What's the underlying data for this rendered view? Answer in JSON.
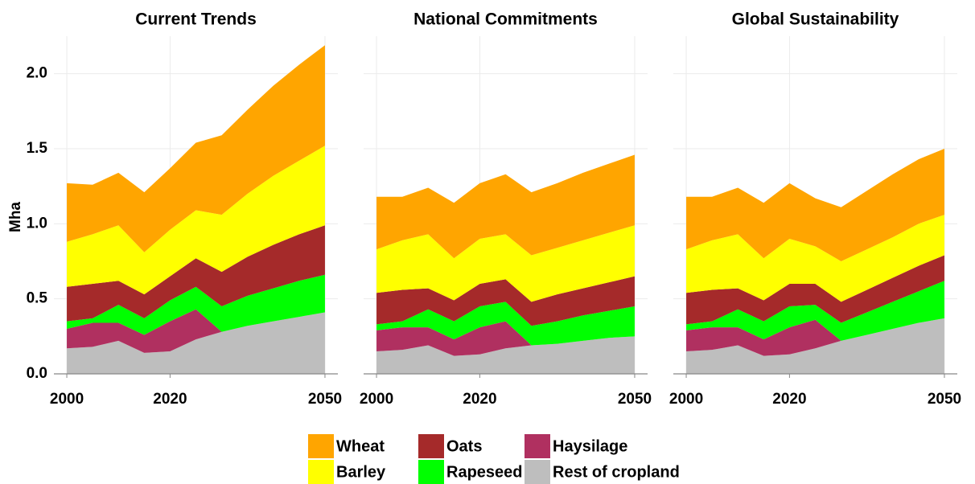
{
  "chart_data": [
    {
      "type": "area",
      "title": "Current Trends",
      "ylabel": "Mha",
      "x": [
        2000,
        2005,
        2010,
        2015,
        2020,
        2025,
        2030,
        2035,
        2040,
        2045,
        2050
      ],
      "xlim": [
        1997.5,
        2052.5
      ],
      "xticks": [
        2000,
        2020,
        2050
      ],
      "ylim": [
        0,
        2.25
      ],
      "yticks": [
        {
          "value": 0,
          "label": "0.0"
        },
        {
          "value": 0.5,
          "label": "0.5"
        },
        {
          "value": 1,
          "label": "1.0"
        },
        {
          "value": 1.5,
          "label": "1.5"
        },
        {
          "value": 2,
          "label": "2.0"
        }
      ],
      "grid": true,
      "series": [
        {
          "name": "Wheat",
          "color": "#ffa500",
          "values": [
            0.39,
            0.33,
            0.35,
            0.4,
            0.41,
            0.45,
            0.53,
            0.56,
            0.6,
            0.64,
            0.67
          ]
        },
        {
          "name": "Barley",
          "color": "#ffff00",
          "values": [
            0.3,
            0.33,
            0.37,
            0.28,
            0.31,
            0.32,
            0.38,
            0.42,
            0.46,
            0.49,
            0.53
          ]
        },
        {
          "name": "Oats",
          "color": "#a52a2a",
          "values": [
            0.23,
            0.23,
            0.16,
            0.16,
            0.16,
            0.19,
            0.23,
            0.26,
            0.29,
            0.31,
            0.33
          ]
        },
        {
          "name": "Rapeseed",
          "color": "#00ff00",
          "values": [
            0.05,
            0.03,
            0.12,
            0.11,
            0.14,
            0.15,
            0.17,
            0.2,
            0.22,
            0.24,
            0.25
          ]
        },
        {
          "name": "Haysilage",
          "color": "#b03060",
          "values": [
            0.13,
            0.16,
            0.12,
            0.12,
            0.2,
            0.2,
            0,
            0,
            0,
            0,
            0
          ]
        },
        {
          "name": "Rest of cropland",
          "color": "#bebebe",
          "values": [
            0.17,
            0.18,
            0.22,
            0.14,
            0.15,
            0.23,
            0.28,
            0.32,
            0.35,
            0.38,
            0.41
          ]
        }
      ]
    },
    {
      "type": "area",
      "title": "National Commitments",
      "x": [
        2000,
        2005,
        2010,
        2015,
        2020,
        2025,
        2030,
        2035,
        2040,
        2045,
        2050
      ],
      "xlim": [
        1997.5,
        2052.5
      ],
      "xticks": [
        2000,
        2020,
        2050
      ],
      "ylim": [
        0,
        2.25
      ],
      "yticks": [
        0,
        0.5,
        1,
        1.5,
        2
      ],
      "grid": true,
      "series": [
        {
          "color": "#ffa500",
          "values": [
            0.35,
            0.29,
            0.31,
            0.37,
            0.37,
            0.4,
            0.42,
            0.43,
            0.45,
            0.46,
            0.47
          ]
        },
        {
          "color": "#ffff00",
          "values": [
            0.29,
            0.33,
            0.36,
            0.28,
            0.3,
            0.3,
            0.31,
            0.31,
            0.32,
            0.33,
            0.34
          ]
        },
        {
          "color": "#a52a2a",
          "values": [
            0.21,
            0.21,
            0.14,
            0.14,
            0.15,
            0.15,
            0.16,
            0.18,
            0.18,
            0.19,
            0.2
          ]
        },
        {
          "color": "#00ff00",
          "values": [
            0.04,
            0.04,
            0.12,
            0.12,
            0.14,
            0.13,
            0.13,
            0.15,
            0.17,
            0.18,
            0.2
          ]
        },
        {
          "color": "#b03060",
          "values": [
            0.14,
            0.15,
            0.12,
            0.11,
            0.18,
            0.18,
            0,
            0,
            0,
            0,
            0
          ]
        },
        {
          "color": "#bebebe",
          "values": [
            0.15,
            0.16,
            0.19,
            0.12,
            0.13,
            0.17,
            0.19,
            0.2,
            0.22,
            0.24,
            0.25
          ]
        }
      ]
    },
    {
      "type": "area",
      "title": "Global Sustainability",
      "x": [
        2000,
        2005,
        2010,
        2015,
        2020,
        2025,
        2030,
        2035,
        2040,
        2045,
        2050
      ],
      "xlim": [
        1997.5,
        2052.5
      ],
      "xticks": [
        2000,
        2020,
        2050
      ],
      "ylim": [
        0,
        2.25
      ],
      "yticks": [
        0,
        0.5,
        1,
        1.5,
        2
      ],
      "grid": true,
      "series": [
        {
          "color": "#ffa500",
          "values": [
            0.35,
            0.29,
            0.31,
            0.37,
            0.37,
            0.32,
            0.36,
            0.39,
            0.42,
            0.43,
            0.44
          ]
        },
        {
          "color": "#ffff00",
          "values": [
            0.29,
            0.33,
            0.36,
            0.28,
            0.3,
            0.25,
            0.27,
            0.27,
            0.27,
            0.28,
            0.27
          ]
        },
        {
          "color": "#a52a2a",
          "values": [
            0.21,
            0.21,
            0.14,
            0.14,
            0.15,
            0.14,
            0.14,
            0.15,
            0.16,
            0.17,
            0.17
          ]
        },
        {
          "color": "#00ff00",
          "values": [
            0.04,
            0.04,
            0.12,
            0.12,
            0.14,
            0.1,
            0.12,
            0.15,
            0.18,
            0.21,
            0.25
          ]
        },
        {
          "color": "#b03060",
          "values": [
            0.14,
            0.15,
            0.12,
            0.11,
            0.18,
            0.19,
            0,
            0,
            0,
            0,
            0
          ]
        },
        {
          "color": "#bebebe",
          "values": [
            0.15,
            0.16,
            0.19,
            0.12,
            0.13,
            0.17,
            0.22,
            0.26,
            0.3,
            0.34,
            0.37
          ]
        }
      ]
    }
  ]
}
